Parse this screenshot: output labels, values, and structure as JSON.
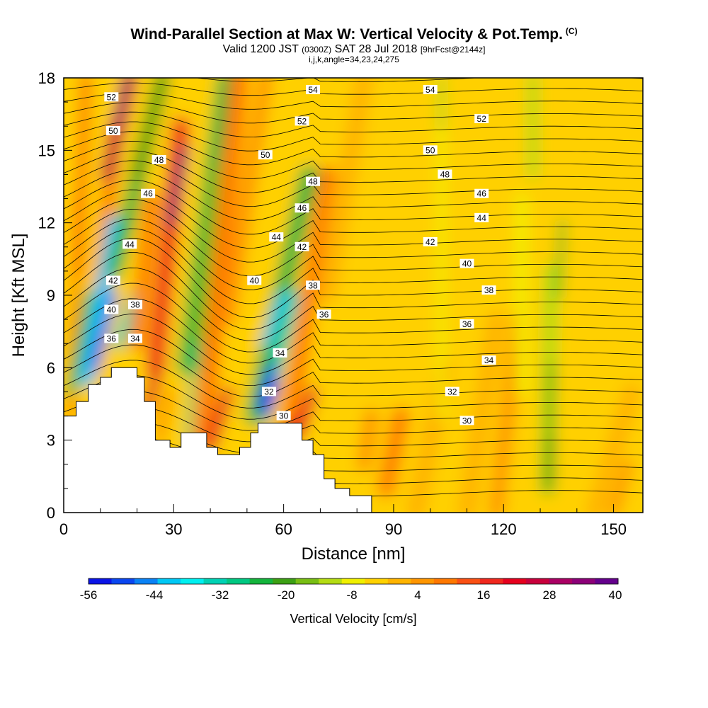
{
  "header": {
    "title": "Wind-Parallel Section at Max W: Vertical Velocity & Pot.Temp.",
    "copyright": "(C)",
    "valid_prefix": "Valid 1200 JST",
    "valid_utc": "(0300Z)",
    "valid_date": "SAT 28 Jul 2018",
    "valid_fcst": "[9hrFcst@2144z]",
    "ijk": "i,j,k,angle=34,23,24,275"
  },
  "chart_data": {
    "type": "heatmap",
    "xlabel": "Distance [nm]",
    "ylabel": "Height [Kft MSL]",
    "xlim": [
      0,
      158
    ],
    "ylim": [
      0,
      18
    ],
    "x_ticks": [
      "0",
      "30",
      "60",
      "90",
      "120",
      "150"
    ],
    "x_tick_values": [
      0,
      30,
      60,
      90,
      120,
      150
    ],
    "y_ticks": [
      "0",
      "3",
      "6",
      "9",
      "12",
      "15",
      "18"
    ],
    "y_tick_values": [
      0,
      3,
      6,
      9,
      12,
      15,
      18
    ],
    "terrain": [
      [
        0,
        4
      ],
      [
        3.4,
        4
      ],
      [
        3.4,
        4.6
      ],
      [
        6.7,
        4.6
      ],
      [
        6.7,
        5.3
      ],
      [
        10,
        5.3
      ],
      [
        10,
        5.6
      ],
      [
        13,
        5.6
      ],
      [
        13,
        6
      ],
      [
        20,
        6
      ],
      [
        20,
        5.6
      ],
      [
        22,
        5.6
      ],
      [
        22,
        4.6
      ],
      [
        25,
        4.6
      ],
      [
        25,
        3
      ],
      [
        29,
        3
      ],
      [
        29,
        2.7
      ],
      [
        32,
        2.7
      ],
      [
        32,
        3.3
      ],
      [
        39,
        3.3
      ],
      [
        39,
        2.7
      ],
      [
        42,
        2.7
      ],
      [
        42,
        2.4
      ],
      [
        48,
        2.4
      ],
      [
        48,
        2.7
      ],
      [
        51,
        2.7
      ],
      [
        51,
        3.3
      ],
      [
        53,
        3.3
      ],
      [
        53,
        3.7
      ],
      [
        65,
        3.7
      ],
      [
        65,
        3
      ],
      [
        68,
        3
      ],
      [
        68,
        2.4
      ],
      [
        71,
        2.4
      ],
      [
        71,
        1.4
      ],
      [
        74,
        1.4
      ],
      [
        74,
        1.0
      ],
      [
        78,
        1.0
      ],
      [
        78,
        0.7
      ],
      [
        84,
        0.7
      ],
      [
        84,
        0
      ]
    ],
    "colorbar": {
      "label": "Vertical Velocity [cm/s]",
      "tick_labels": [
        "-56",
        "-44",
        "-32",
        "-20",
        "-8",
        "4",
        "16",
        "28",
        "40"
      ],
      "colors": [
        "#0a14e6",
        "#0a46f0",
        "#0a82f5",
        "#00c8f5",
        "#00f0f0",
        "#00d2b4",
        "#00c882",
        "#14b43c",
        "#3ca014",
        "#78be14",
        "#b4dc14",
        "#f0f000",
        "#ffd200",
        "#ffb400",
        "#ff9600",
        "#ff7800",
        "#fa5014",
        "#f0281e",
        "#e6001e",
        "#c8003c",
        "#aa0064",
        "#8c0078",
        "#64008c"
      ]
    },
    "theta_contours": [
      {
        "label": "52",
        "x": 13,
        "y": 17.2
      },
      {
        "label": "50",
        "x": 13.5,
        "y": 15.8
      },
      {
        "label": "48",
        "x": 26,
        "y": 14.6
      },
      {
        "label": "46",
        "x": 23,
        "y": 13.2
      },
      {
        "label": "44",
        "x": 18,
        "y": 11.1
      },
      {
        "label": "42",
        "x": 13.5,
        "y": 9.6
      },
      {
        "label": "40",
        "x": 13,
        "y": 8.4
      },
      {
        "label": "38",
        "x": 19.5,
        "y": 8.6
      },
      {
        "label": "36",
        "x": 13,
        "y": 7.2
      },
      {
        "label": "34",
        "x": 19.5,
        "y": 7.2
      },
      {
        "label": "54",
        "x": 68,
        "y": 17.5
      },
      {
        "label": "52",
        "x": 65,
        "y": 16.2
      },
      {
        "label": "50",
        "x": 55,
        "y": 14.8
      },
      {
        "label": "48",
        "x": 68,
        "y": 13.7
      },
      {
        "label": "46",
        "x": 65,
        "y": 12.6
      },
      {
        "label": "44",
        "x": 58,
        "y": 11.4
      },
      {
        "label": "42",
        "x": 65,
        "y": 11.0
      },
      {
        "label": "40",
        "x": 52,
        "y": 9.6
      },
      {
        "label": "38",
        "x": 68,
        "y": 9.4
      },
      {
        "label": "36",
        "x": 71,
        "y": 8.2
      },
      {
        "label": "34",
        "x": 59,
        "y": 6.6
      },
      {
        "label": "32",
        "x": 56,
        "y": 5.0
      },
      {
        "label": "30",
        "x": 60,
        "y": 4.0
      },
      {
        "label": "54",
        "x": 100,
        "y": 17.5
      },
      {
        "label": "52",
        "x": 114,
        "y": 16.3
      },
      {
        "label": "50",
        "x": 100,
        "y": 15.0
      },
      {
        "label": "48",
        "x": 104,
        "y": 14.0
      },
      {
        "label": "46",
        "x": 114,
        "y": 13.2
      },
      {
        "label": "44",
        "x": 114,
        "y": 12.2
      },
      {
        "label": "42",
        "x": 100,
        "y": 11.2
      },
      {
        "label": "40",
        "x": 110,
        "y": 10.3
      },
      {
        "label": "38",
        "x": 116,
        "y": 9.2
      },
      {
        "label": "36",
        "x": 110,
        "y": 7.8
      },
      {
        "label": "34",
        "x": 116,
        "y": 6.3
      },
      {
        "label": "32",
        "x": 106,
        "y": 5.0
      },
      {
        "label": "30",
        "x": 110,
        "y": 3.8
      }
    ]
  }
}
